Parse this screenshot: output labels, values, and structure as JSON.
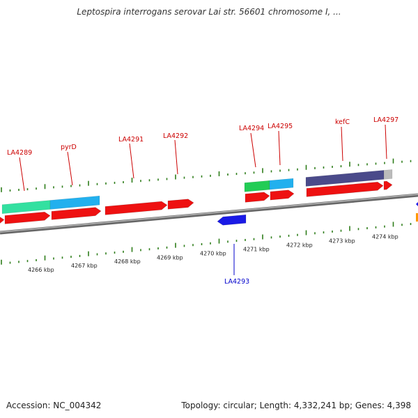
{
  "title": "Leptospira interrogans serovar Lai str. 56601 chromosome I, ...",
  "footer": {
    "accession": "Accession: NC_004342",
    "summary": "Topology: circular; Length: 4,332,241 bp; Genes: 4,398"
  },
  "colors": {
    "backbone": "#888888",
    "tick": "#2e7d1a",
    "forward_gene": "#ee1111",
    "reverse_gene": "#1a1ae6",
    "label_forward": "#cc0000",
    "label_reverse": "#0000cc",
    "cog_green": "#22cc55",
    "cog_seafoam": "#33e0a0",
    "cog_sky": "#22b0ee",
    "cog_navy": "#4a4a8a",
    "cog_grey": "#bbbbbb"
  },
  "scale_labels": [
    "4266 kbp",
    "4267 kbp",
    "4268 kbp",
    "4269 kbp",
    "4270 kbp",
    "4271 kbp",
    "4272 kbp",
    "4273 kbp",
    "4274 kbp"
  ],
  "gene_labels": [
    {
      "text": "LA4289",
      "strand": "forward"
    },
    {
      "text": "pyrD",
      "strand": "forward"
    },
    {
      "text": "LA4291",
      "strand": "forward"
    },
    {
      "text": "LA4292",
      "strand": "forward"
    },
    {
      "text": "LA4293",
      "strand": "reverse"
    },
    {
      "text": "LA4294",
      "strand": "forward"
    },
    {
      "text": "LA4295",
      "strand": "forward"
    },
    {
      "text": "kefC",
      "strand": "forward"
    },
    {
      "text": "LA4297",
      "strand": "forward"
    }
  ]
}
